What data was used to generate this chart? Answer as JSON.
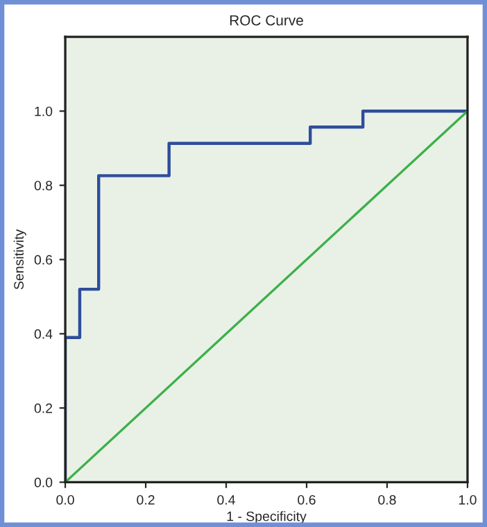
{
  "chart_data": {
    "type": "step",
    "title": "ROC Curve",
    "xlabel": "1 - Specificity",
    "ylabel": "Sensitivity",
    "series": [
      {
        "color": "#2e4d9b",
        "x": [
          0,
          0,
          0.036,
          0.083,
          0.258,
          0.609,
          0.74,
          1.0
        ],
        "values": [
          0,
          0.39,
          0.52,
          0.826,
          0.913,
          0.957,
          1.0,
          1.0
        ]
      },
      {
        "type": "line",
        "color": "#3db04a",
        "x": [
          0,
          1
        ],
        "values": [
          0,
          1
        ]
      }
    ],
    "xlim": [
      0,
      1
    ],
    "ylim": [
      0,
      1.2
    ],
    "xticks": [
      {
        "value": 0,
        "label": "0.0"
      },
      {
        "value": 0.2,
        "label": "0.2"
      },
      {
        "value": 0.4,
        "label": "0.4"
      },
      {
        "value": 0.6,
        "label": "0.6"
      },
      {
        "value": 0.8,
        "label": "0.8"
      },
      {
        "value": 1.0,
        "label": "1.0"
      }
    ],
    "yticks": [
      {
        "value": 0,
        "label": "0.0"
      },
      {
        "value": 0.2,
        "label": "0.2"
      },
      {
        "value": 0.4,
        "label": "0.4"
      },
      {
        "value": 0.6,
        "label": "0.6"
      },
      {
        "value": 0.8,
        "label": "0.8"
      },
      {
        "value": 1.0,
        "label": "1.0"
      }
    ],
    "grid": false,
    "legend": false
  }
}
